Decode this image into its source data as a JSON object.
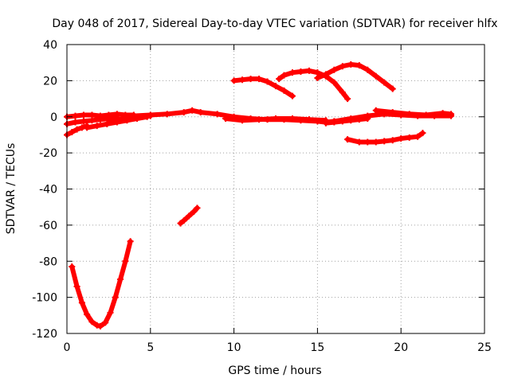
{
  "chart_data": {
    "type": "scatter",
    "title": "Day 048 of 2017, Sidereal Day-to-day VTEC variation (SDTVAR) for receiver hlfx",
    "xlabel": "GPS time / hours",
    "ylabel": "SDTVAR / TECUs",
    "xlim": [
      0,
      25
    ],
    "ylim": [
      -120,
      40
    ],
    "xticks": [
      0,
      5,
      10,
      15,
      20,
      25
    ],
    "yticks": [
      -120,
      -100,
      -80,
      -60,
      -40,
      -20,
      0,
      20,
      40
    ],
    "grid": true,
    "legend": "none",
    "marker_color": "#ff0000",
    "series": [
      {
        "x": [
          0.0,
          0.5,
          1.0,
          1.5,
          2.0,
          2.5,
          3.0,
          3.5,
          4.0
        ],
        "y": [
          0.0,
          0.5,
          1.0,
          1.0,
          0.5,
          1.0,
          1.5,
          1.0,
          1.0
        ]
      },
      {
        "x": [
          0.0,
          0.5,
          1.0,
          1.5,
          2.0,
          2.5,
          3.0
        ],
        "y": [
          -4.0,
          -3.0,
          -2.5,
          -2.0,
          -1.5,
          -1.0,
          -0.5
        ]
      },
      {
        "x": [
          0.0,
          0.3,
          0.6,
          0.9,
          1.2
        ],
        "y": [
          -10.0,
          -8.5,
          -7.0,
          -6.0,
          -5.0
        ]
      },
      {
        "x": [
          1.2,
          1.8,
          2.4,
          3.0,
          3.6,
          4.2,
          4.8
        ],
        "y": [
          -6.0,
          -5.0,
          -4.0,
          -3.0,
          -2.0,
          -1.0,
          0.0
        ]
      },
      {
        "x": [
          2.5,
          3.0,
          3.5,
          4.0,
          4.5,
          5.0
        ],
        "y": [
          -2.0,
          -1.5,
          -1.0,
          -0.5,
          0.0,
          0.5
        ]
      },
      {
        "x": [
          4.0,
          5.0,
          6.0,
          7.0,
          7.5,
          8.0,
          9.0,
          10.0,
          11.0,
          12.0,
          13.0,
          14.0,
          15.0,
          15.5,
          16.0,
          17.0,
          18.0,
          19.0,
          20.0,
          21.0,
          22.0,
          23.0
        ],
        "y": [
          0.5,
          1.0,
          1.5,
          2.5,
          3.5,
          2.5,
          1.5,
          0.0,
          -1.0,
          -1.5,
          -1.5,
          -2.0,
          -2.5,
          -3.0,
          -2.5,
          -1.0,
          0.5,
          1.5,
          1.0,
          0.5,
          0.5,
          0.5
        ]
      },
      {
        "x": [
          9.5,
          10.5,
          11.5,
          12.5,
          13.5,
          14.5,
          15.5
        ],
        "y": [
          -1.0,
          -2.0,
          -1.5,
          -1.0,
          -1.0,
          -1.5,
          -2.0
        ]
      },
      {
        "x": [
          15.5,
          16.0,
          16.5,
          17.0,
          17.5,
          18.0
        ],
        "y": [
          -3.5,
          -3.0,
          -2.5,
          -2.0,
          -1.5,
          -1.0
        ]
      },
      {
        "x": [
          18.5,
          19.5,
          20.5,
          21.5,
          22.5,
          23.0
        ],
        "y": [
          3.5,
          2.5,
          1.5,
          1.0,
          2.0,
          1.5
        ]
      },
      {
        "x": [
          10.0,
          10.5,
          11.0,
          11.5,
          12.0,
          12.5,
          13.0,
          13.5
        ],
        "y": [
          20.0,
          20.5,
          21.0,
          21.0,
          19.5,
          17.0,
          14.5,
          11.5
        ]
      },
      {
        "x": [
          12.7,
          13.0,
          13.5,
          14.0,
          14.5,
          15.0,
          15.5,
          16.0,
          16.5,
          16.8
        ],
        "y": [
          21.0,
          23.0,
          24.5,
          25.0,
          25.5,
          24.5,
          22.5,
          19.0,
          13.5,
          10.0
        ]
      },
      {
        "x": [
          15.0,
          15.5,
          16.0,
          16.5,
          17.0,
          17.5,
          18.0,
          18.5,
          19.0,
          19.5
        ],
        "y": [
          21.5,
          23.5,
          26.0,
          28.0,
          29.0,
          28.5,
          26.0,
          22.5,
          19.0,
          15.5
        ]
      },
      {
        "x": [
          16.8,
          17.5,
          18.0,
          18.5,
          19.0,
          19.5,
          20.0,
          20.5,
          21.0,
          21.3
        ],
        "y": [
          -12.5,
          -14.0,
          -14.0,
          -14.0,
          -13.5,
          -13.0,
          -12.0,
          -11.5,
          -11.0,
          -9.0
        ]
      },
      {
        "x": [
          6.8,
          7.0,
          7.3,
          7.6,
          7.8
        ],
        "y": [
          -59.0,
          -57.5,
          -55.0,
          -52.5,
          -50.5
        ]
      },
      {
        "x": [
          0.3,
          0.6,
          0.9,
          1.2,
          1.5,
          1.8,
          2.0,
          2.3,
          2.6,
          2.9,
          3.2,
          3.5,
          3.8
        ],
        "y": [
          -83.0,
          -94.0,
          -103.0,
          -109.5,
          -113.5,
          -115.5,
          -116.0,
          -114.0,
          -108.5,
          -100.0,
          -90.0,
          -80.0,
          -69.0
        ]
      }
    ]
  }
}
